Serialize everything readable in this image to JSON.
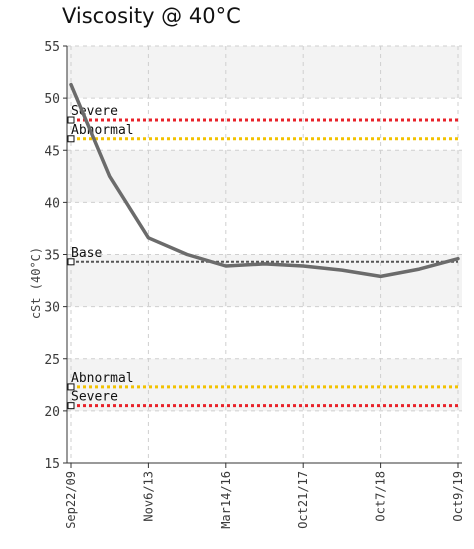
{
  "chart_data": {
    "type": "line",
    "title": "Viscosity @ 40°C",
    "ylabel": "cSt (40°C)",
    "xlabel": "",
    "ylim": [
      15,
      55
    ],
    "yticks": [
      15,
      20,
      25,
      30,
      35,
      40,
      45,
      50,
      55
    ],
    "grid": true,
    "x_tick_labels": [
      "Sep22/09",
      "Nov6/13",
      "Mar14/16",
      "Oct21/17",
      "Oct7/18",
      "Oct9/19"
    ],
    "series": [
      {
        "color": "#6b6b6b",
        "values": [
          51.3,
          42.5,
          36.6,
          35.0,
          33.9,
          34.1,
          33.9,
          33.5,
          32.9,
          33.6,
          34.6
        ],
        "tick_positions": [
          0,
          1,
          2,
          3,
          4,
          5,
          6,
          7,
          8,
          9,
          10
        ]
      }
    ],
    "x_tick_at": [
      0,
      2,
      4,
      6,
      8,
      10
    ],
    "reference_lines": [
      {
        "label": "Severe",
        "value": 47.9,
        "color": "#e8222a"
      },
      {
        "label": "Abnormal",
        "value": 46.1,
        "color": "#f2c200"
      },
      {
        "label": "Base",
        "value": 34.3,
        "color": "#555555"
      },
      {
        "label": "Abnormal",
        "value": 22.3,
        "color": "#f2c200"
      },
      {
        "label": "Severe",
        "value": 20.5,
        "color": "#e8222a"
      }
    ]
  }
}
